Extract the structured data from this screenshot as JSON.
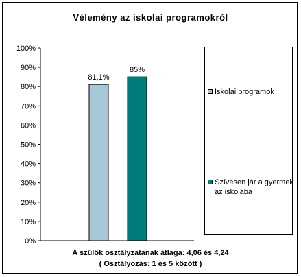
{
  "chart_data": {
    "type": "bar",
    "title": "Vélemény az iskolai programokról",
    "categories": [
      ""
    ],
    "series": [
      {
        "name": "Iskolai programok",
        "values": [
          81.1
        ],
        "label": "81,1%",
        "color": "#a6c8d6"
      },
      {
        "name": "Szívesen jár a gyermek az iskolába",
        "values": [
          85
        ],
        "label": "85%",
        "color": "#007c7c"
      }
    ],
    "ylim": [
      0,
      100
    ],
    "yticks": [
      "0%",
      "10%",
      "20%",
      "30%",
      "40%",
      "50%",
      "60%",
      "70%",
      "80%",
      "90%",
      "100%"
    ],
    "grid": false,
    "legend": "right"
  },
  "footer": {
    "line1": "A szülők osztályzatának átlaga: 4,06 és 4,24",
    "line2": "( Osztályozás: 1 és 5 között )"
  }
}
